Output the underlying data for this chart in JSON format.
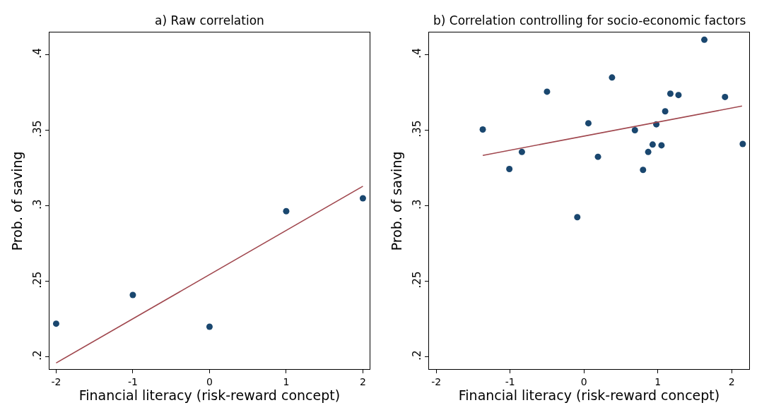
{
  "chart_data": [
    {
      "type": "scatter",
      "title": "a) Raw correlation",
      "xlabel": "Financial literacy (risk-reward concept)",
      "ylabel": "Prob. of saving",
      "xlim": [
        -2.09,
        2.09
      ],
      "xticks": [
        -2,
        -1,
        0,
        1,
        2
      ],
      "ylim": [
        0.1918,
        0.4146
      ],
      "yticks": [
        {
          "value": 0.2,
          "label": ".2"
        },
        {
          "value": 0.25,
          "label": ".25"
        },
        {
          "value": 0.3,
          "label": ".3"
        },
        {
          "value": 0.35,
          "label": ".35"
        },
        {
          "value": 0.4,
          "label": ".4"
        }
      ],
      "grid": false,
      "series": [
        {
          "color": "#1a476f",
          "marker": "circle",
          "x": [
            -2,
            -1,
            0,
            1,
            2
          ],
          "values": [
            0.222,
            0.241,
            0.22,
            0.2965,
            0.305
          ]
        },
        {
          "type": "line",
          "marker": "none",
          "color": "#a0474e",
          "x": [
            -2,
            2
          ],
          "values": [
            0.196,
            0.313
          ]
        }
      ]
    },
    {
      "type": "scatter",
      "title": "b) Correlation controlling for socio-economic factors",
      "xlabel": "Financial literacy (risk-reward concept)",
      "ylabel": "Prob. of saving",
      "xlim": [
        -2.1,
        2.24
      ],
      "xticks": [
        -2,
        -1,
        0,
        1,
        2
      ],
      "ylim": [
        0.1918,
        0.4146
      ],
      "yticks": [
        {
          "value": 0.2,
          "label": ".2"
        },
        {
          "value": 0.25,
          "label": ".25"
        },
        {
          "value": 0.3,
          "label": ".3"
        },
        {
          "value": 0.35,
          "label": ".35"
        },
        {
          "value": 0.4,
          "label": ".4"
        }
      ],
      "grid": false,
      "series": [
        {
          "color": "#1a476f",
          "marker": "circle",
          "x": [
            -1.37,
            -1.01,
            -0.84,
            -0.5,
            -0.09,
            0.06,
            0.19,
            0.38,
            0.69,
            0.8,
            0.87,
            0.93,
            0.98,
            1.05,
            1.1,
            1.17,
            1.28,
            1.63,
            1.91,
            2.15
          ],
          "values": [
            0.3506,
            0.3244,
            0.3357,
            0.3756,
            0.2925,
            0.3547,
            0.3325,
            0.385,
            0.3501,
            0.3238,
            0.3357,
            0.3406,
            0.354,
            0.3401,
            0.3626,
            0.3743,
            0.3734,
            0.41,
            0.3721,
            0.341
          ]
        },
        {
          "type": "line",
          "marker": "none",
          "color": "#a0474e",
          "x": [
            -1.37,
            2.14
          ],
          "values": [
            0.3334,
            0.3661
          ]
        }
      ]
    }
  ]
}
